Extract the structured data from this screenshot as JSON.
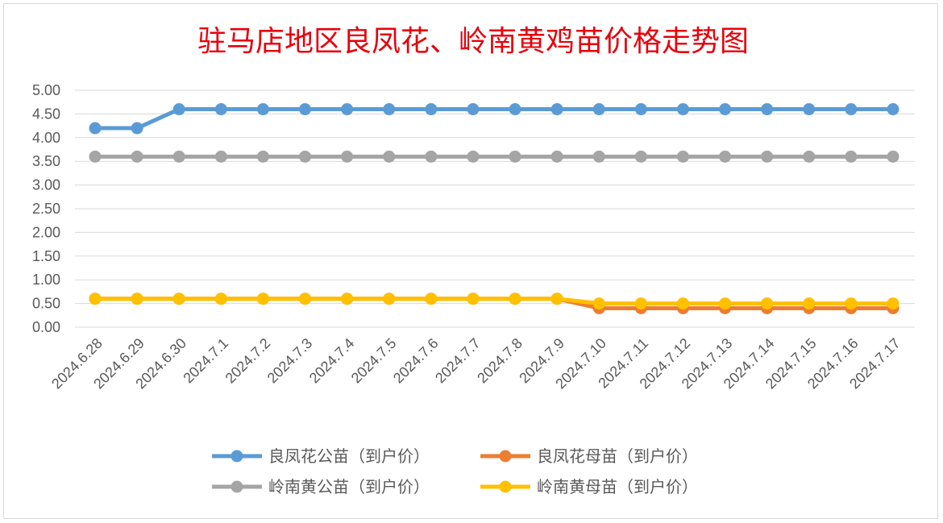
{
  "chart_data": {
    "type": "line",
    "title": "驻马店地区良凤花、岭南黄鸡苗价格走势图",
    "xlabel": "",
    "ylabel": "",
    "ylim": [
      0,
      5
    ],
    "ytick_step": 0.5,
    "grid": true,
    "legend_position": "bottom",
    "categories": [
      "2024.6.28",
      "2024.6.29",
      "2024.6.30",
      "2024.7.1",
      "2024.7.2",
      "2024.7.3",
      "2024.7.4",
      "2024.7.5",
      "2024.7.6",
      "2024.7.7",
      "2024.7.8",
      "2024.7.9",
      "2024.7.10",
      "2024.7.11",
      "2024.7.12",
      "2024.7.13",
      "2024.7.14",
      "2024.7.15",
      "2024.7.16",
      "2024.7.17"
    ],
    "series": [
      {
        "name": "良凤花公苗（到户价）",
        "color": "#5b9bd5",
        "values": [
          4.2,
          4.2,
          4.6,
          4.6,
          4.6,
          4.6,
          4.6,
          4.6,
          4.6,
          4.6,
          4.6,
          4.6,
          4.6,
          4.6,
          4.6,
          4.6,
          4.6,
          4.6,
          4.6,
          4.6
        ]
      },
      {
        "name": "良凤花母苗（到户价）",
        "color": "#ed7d31",
        "values": [
          0.6,
          0.6,
          0.6,
          0.6,
          0.6,
          0.6,
          0.6,
          0.6,
          0.6,
          0.6,
          0.6,
          0.6,
          0.4,
          0.4,
          0.4,
          0.4,
          0.4,
          0.4,
          0.4,
          0.4
        ]
      },
      {
        "name": "岭南黄公苗（到户价）",
        "color": "#a5a5a5",
        "values": [
          3.6,
          3.6,
          3.6,
          3.6,
          3.6,
          3.6,
          3.6,
          3.6,
          3.6,
          3.6,
          3.6,
          3.6,
          3.6,
          3.6,
          3.6,
          3.6,
          3.6,
          3.6,
          3.6,
          3.6
        ]
      },
      {
        "name": "岭南黄母苗（到户价）",
        "color": "#ffc000",
        "values": [
          0.6,
          0.6,
          0.6,
          0.6,
          0.6,
          0.6,
          0.6,
          0.6,
          0.6,
          0.6,
          0.6,
          0.6,
          0.5,
          0.5,
          0.5,
          0.5,
          0.5,
          0.5,
          0.5,
          0.5
        ]
      }
    ]
  }
}
